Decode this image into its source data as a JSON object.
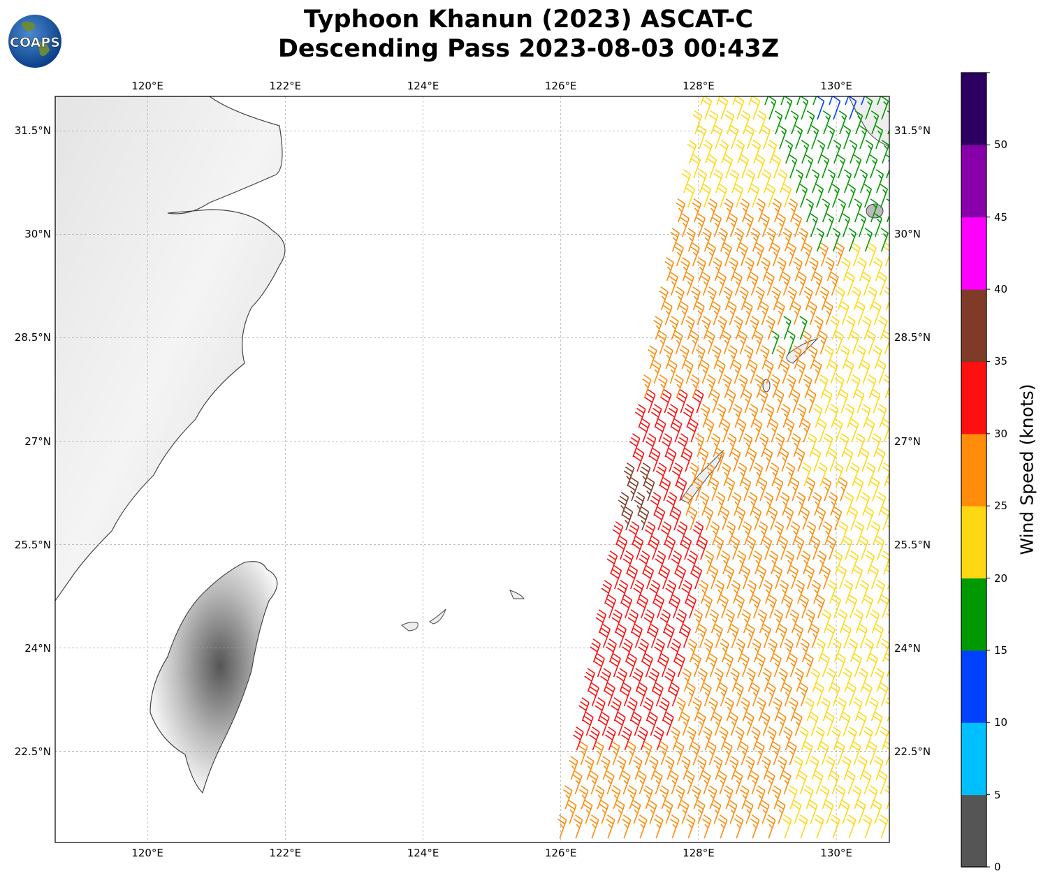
{
  "title": {
    "line1": "Typhoon Khanun (2023) ASCAT-C",
    "line2": "Descending Pass 2023-08-03 00:43Z"
  },
  "logo": {
    "text": "COAPS"
  },
  "map": {
    "lon_range": [
      118.66,
      130.77
    ],
    "lat_range": [
      21.18,
      32.0
    ],
    "gridlines": true,
    "lon_ticks": [
      {
        "value": 120,
        "label": "120°E"
      },
      {
        "value": 122,
        "label": "122°E"
      },
      {
        "value": 124,
        "label": "124°E"
      },
      {
        "value": 126,
        "label": "126°E"
      },
      {
        "value": 128,
        "label": "128°E"
      },
      {
        "value": 130,
        "label": "130°E"
      }
    ],
    "lat_ticks": [
      {
        "value": 31.5,
        "label": "31.5°N"
      },
      {
        "value": 30,
        "label": "30°N"
      },
      {
        "value": 28.5,
        "label": "28.5°N"
      },
      {
        "value": 27,
        "label": "27°N"
      },
      {
        "value": 25.5,
        "label": "25.5°N"
      },
      {
        "value": 24,
        "label": "24°N"
      },
      {
        "value": 22.5,
        "label": "22.5°N"
      }
    ]
  },
  "colorbar": {
    "label": "Wind Speed (knots)",
    "ticks": [
      "0",
      "5",
      "10",
      "15",
      "20",
      "25",
      "30",
      "35",
      "40",
      "45",
      "50"
    ],
    "colors": [
      "#555555",
      "#00bfff",
      "#0040ff",
      "#009900",
      "#ffd814",
      "#ff8c0a",
      "#ff1010",
      "#7f3b28",
      "#ff00ff",
      "#8800aa",
      "#2b0060"
    ]
  }
}
